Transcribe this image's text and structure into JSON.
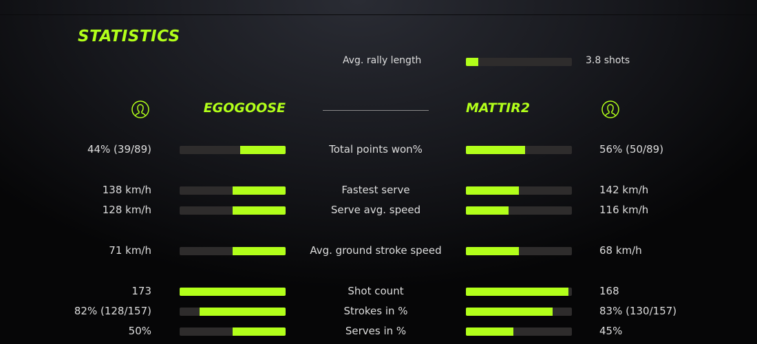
{
  "title": "STATISTICS",
  "accent": "#b2ff1a",
  "rally": {
    "label": "Avg. rally length",
    "value": "3.8 shots",
    "fraction": 0.12
  },
  "players": {
    "left": {
      "name": "EGOGOOSE",
      "icon": "user-icon"
    },
    "right": {
      "name": "MATTIR2",
      "icon": "user-icon"
    }
  },
  "rows": [
    {
      "label": "Total points won%",
      "left": "44% (39/89)",
      "right": "56% (50/89)",
      "lf": 0.43,
      "rf": 0.56
    },
    {
      "label": "Fastest serve",
      "left": "138 km/h",
      "right": "142 km/h",
      "lf": 0.5,
      "rf": 0.5
    },
    {
      "label": "Serve avg. speed",
      "left": "128 km/h",
      "right": "116 km/h",
      "lf": 0.5,
      "rf": 0.4
    },
    {
      "label": "Avg. ground stroke speed",
      "left": "71 km/h",
      "right": "68 km/h",
      "lf": 0.5,
      "rf": 0.5
    },
    {
      "label": "Shot count",
      "left": "173",
      "right": "168",
      "lf": 1.0,
      "rf": 0.97
    },
    {
      "label": "Strokes in %",
      "left": "82% (128/157)",
      "right": "83% (130/157)",
      "lf": 0.81,
      "rf": 0.82
    },
    {
      "label": "Serves in %",
      "left": "50%",
      "right": "45%",
      "lf": 0.5,
      "rf": 0.45
    }
  ]
}
